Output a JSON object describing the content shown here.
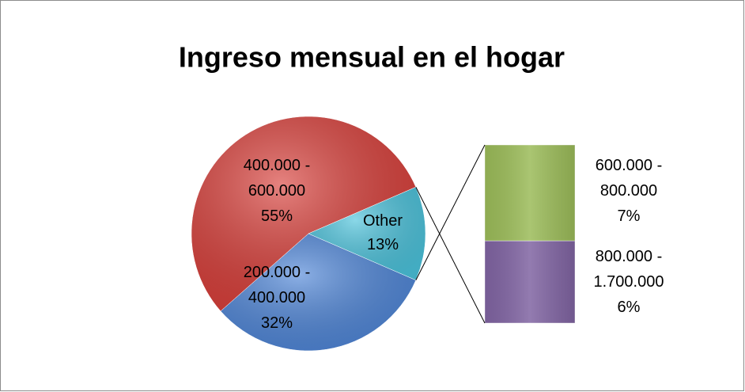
{
  "chart_data": {
    "type": "bar-of-pie",
    "title": "Ingreso mensual en el hogar",
    "pie": {
      "categories": [
        "200.000 - 400.000",
        "400.000 - 600.000",
        "Other"
      ],
      "values": [
        32,
        55,
        13
      ],
      "value_labels": [
        "32%",
        "55%",
        "13%"
      ],
      "colors": [
        "#4f86d8",
        "#d9403b",
        "#4cc3dc"
      ]
    },
    "bar": {
      "categories": [
        "600.000 - 800.000",
        "800.000 - 1.700.000"
      ],
      "values": [
        7,
        6
      ],
      "value_labels": [
        "7%",
        "6%"
      ],
      "colors": [
        "#9bbb59",
        "#8064a2"
      ]
    }
  }
}
